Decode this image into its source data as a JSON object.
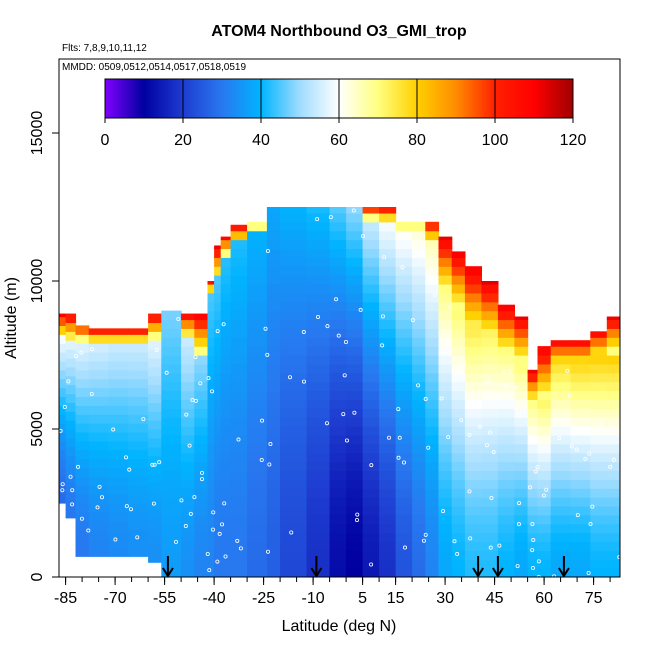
{
  "chart_data": {
    "type": "heatmap",
    "title": "ATOM4 Northbound O3_GMI_trop",
    "subtitle_flights": "Flts: 7,8,9,10,11,12",
    "subtitle_dates": "MMDD: 0509,0512,0514,0517,0518,0519",
    "xlabel": "Latitude (deg N)",
    "ylabel": "Altitude (m)",
    "xlim": [
      -87,
      83
    ],
    "ylim": [
      0,
      17500
    ],
    "x_tick_labels": [
      "-85",
      "-70",
      "-55",
      "-40",
      "-25",
      "-10",
      "5",
      "15",
      "30",
      "45",
      "60",
      "75"
    ],
    "x_tick_values": [
      -85,
      -70,
      -55,
      -40,
      -25,
      -10,
      5,
      15,
      30,
      45,
      60,
      75
    ],
    "y_tick_labels": [
      "0",
      "5000",
      "10000",
      "15000"
    ],
    "y_tick_values": [
      0,
      5000,
      10000,
      15000
    ],
    "colorbar": {
      "min": 0,
      "max": 120,
      "tick_labels": [
        "0",
        "20",
        "40",
        "60",
        "80",
        "100",
        "120"
      ],
      "tick_values": [
        0,
        20,
        40,
        60,
        80,
        100,
        120
      ],
      "colors": [
        "#8000ff",
        "#0000a0",
        "#1e3cd0",
        "#2878f0",
        "#00b4ff",
        "#a0dcff",
        "#ffffff",
        "#ffff80",
        "#ffd000",
        "#ff8c00",
        "#ff2000",
        "#ff0000",
        "#a00000"
      ]
    },
    "arrow_latitudes": [
      -54,
      -9,
      40,
      46,
      66
    ],
    "profile_columns": [
      {
        "lat_min": -87,
        "lat_max": -85,
        "surface": 2500,
        "tropopause": 8000,
        "strat_top": 8900,
        "o3_low": 28,
        "o3_high": 60
      },
      {
        "lat_min": -85,
        "lat_max": -82,
        "surface": 2000,
        "tropopause": 7900,
        "strat_top": 8900,
        "o3_low": 30,
        "o3_high": 58
      },
      {
        "lat_min": -82,
        "lat_max": -78,
        "surface": 700,
        "tropopause": 7900,
        "strat_top": 8500,
        "o3_low": 30,
        "o3_high": 58
      },
      {
        "lat_min": -78,
        "lat_max": -72,
        "surface": 700,
        "tropopause": 7800,
        "strat_top": 8400,
        "o3_low": 32,
        "o3_high": 56
      },
      {
        "lat_min": -72,
        "lat_max": -66,
        "surface": 700,
        "tropopause": 7800,
        "strat_top": 8400,
        "o3_low": 33,
        "o3_high": 55
      },
      {
        "lat_min": -66,
        "lat_max": -60,
        "surface": 700,
        "tropopause": 7800,
        "strat_top": 8400,
        "o3_low": 34,
        "o3_high": 55
      },
      {
        "lat_min": -60,
        "lat_max": -56,
        "surface": 500,
        "tropopause": 8000,
        "strat_top": 8900,
        "o3_low": 34,
        "o3_high": 58
      },
      {
        "lat_min": -56,
        "lat_max": -50,
        "surface": 0,
        "tropopause": 9000,
        "strat_top": 9000,
        "o3_low": 36,
        "o3_high": 48
      },
      {
        "lat_min": -50,
        "lat_max": -46,
        "surface": 0,
        "tropopause": 8000,
        "strat_top": 8900,
        "o3_low": 34,
        "o3_high": 55
      },
      {
        "lat_min": -46,
        "lat_max": -42,
        "surface": 0,
        "tropopause": 7500,
        "strat_top": 8900,
        "o3_low": 32,
        "o3_high": 50
      },
      {
        "lat_min": -42,
        "lat_max": -40,
        "surface": 0,
        "tropopause": 9500,
        "strat_top": 10000,
        "o3_low": 32,
        "o3_high": 45
      },
      {
        "lat_min": -40,
        "lat_max": -38,
        "surface": 0,
        "tropopause": 10000,
        "strat_top": 11200,
        "o3_low": 30,
        "o3_high": 45
      },
      {
        "lat_min": -38,
        "lat_max": -35,
        "surface": 0,
        "tropopause": 10800,
        "strat_top": 11500,
        "o3_low": 30,
        "o3_high": 43
      },
      {
        "lat_min": -35,
        "lat_max": -30,
        "surface": 0,
        "tropopause": 11200,
        "strat_top": 11900,
        "o3_low": 30,
        "o3_high": 42
      },
      {
        "lat_min": -30,
        "lat_max": -24,
        "surface": 0,
        "tropopause": 11700,
        "strat_top": 12000,
        "o3_low": 28,
        "o3_high": 40
      },
      {
        "lat_min": -24,
        "lat_max": -20,
        "surface": 0,
        "tropopause": 12500,
        "strat_top": 12500,
        "o3_low": 26,
        "o3_high": 38
      },
      {
        "lat_min": -20,
        "lat_max": -12,
        "surface": 0,
        "tropopause": 12500,
        "strat_top": 12500,
        "o3_low": 22,
        "o3_high": 40
      },
      {
        "lat_min": -12,
        "lat_max": -5,
        "surface": 0,
        "tropopause": 12500,
        "strat_top": 12500,
        "o3_low": 18,
        "o3_high": 42
      },
      {
        "lat_min": -5,
        "lat_max": 0,
        "surface": 0,
        "tropopause": 12500,
        "strat_top": 12500,
        "o3_low": 12,
        "o3_high": 46
      },
      {
        "lat_min": 0,
        "lat_max": 5,
        "surface": 0,
        "tropopause": 12500,
        "strat_top": 12500,
        "o3_low": 10,
        "o3_high": 50
      },
      {
        "lat_min": 5,
        "lat_max": 10,
        "surface": 0,
        "tropopause": 12000,
        "strat_top": 12500,
        "o3_low": 14,
        "o3_high": 55
      },
      {
        "lat_min": 10,
        "lat_max": 15,
        "surface": 0,
        "tropopause": 11900,
        "strat_top": 12500,
        "o3_low": 18,
        "o3_high": 60
      },
      {
        "lat_min": 15,
        "lat_max": 20,
        "surface": 0,
        "tropopause": 11700,
        "strat_top": 12000,
        "o3_low": 24,
        "o3_high": 62
      },
      {
        "lat_min": 20,
        "lat_max": 24,
        "surface": 0,
        "tropopause": 11700,
        "strat_top": 12000,
        "o3_low": 28,
        "o3_high": 64
      },
      {
        "lat_min": 24,
        "lat_max": 28,
        "surface": 0,
        "tropopause": 11200,
        "strat_top": 12000,
        "o3_low": 32,
        "o3_high": 66
      },
      {
        "lat_min": 28,
        "lat_max": 32,
        "surface": 0,
        "tropopause": 9600,
        "strat_top": 11500,
        "o3_low": 38,
        "o3_high": 70
      },
      {
        "lat_min": 32,
        "lat_max": 36,
        "surface": 0,
        "tropopause": 9000,
        "strat_top": 11000,
        "o3_low": 40,
        "o3_high": 72
      },
      {
        "lat_min": 36,
        "lat_max": 41,
        "surface": 0,
        "tropopause": 8200,
        "strat_top": 10500,
        "o3_low": 42,
        "o3_high": 74
      },
      {
        "lat_min": 41,
        "lat_max": 46,
        "surface": 0,
        "tropopause": 8000,
        "strat_top": 10000,
        "o3_low": 42,
        "o3_high": 72
      },
      {
        "lat_min": 46,
        "lat_max": 51,
        "surface": 0,
        "tropopause": 7500,
        "strat_top": 9200,
        "o3_low": 40,
        "o3_high": 70
      },
      {
        "lat_min": 51,
        "lat_max": 55,
        "surface": 0,
        "tropopause": 7200,
        "strat_top": 8800,
        "o3_low": 38,
        "o3_high": 72
      },
      {
        "lat_min": 55,
        "lat_max": 58,
        "surface": 0,
        "tropopause": 5800,
        "strat_top": 7000,
        "o3_low": 40,
        "o3_high": 70
      },
      {
        "lat_min": 58,
        "lat_max": 62,
        "surface": 0,
        "tropopause": 6000,
        "strat_top": 7800,
        "o3_low": 40,
        "o3_high": 74
      },
      {
        "lat_min": 62,
        "lat_max": 68,
        "surface": 0,
        "tropopause": 7000,
        "strat_top": 8000,
        "o3_low": 38,
        "o3_high": 76
      },
      {
        "lat_min": 68,
        "lat_max": 74,
        "surface": 0,
        "tropopause": 7000,
        "strat_top": 8000,
        "o3_low": 38,
        "o3_high": 78
      },
      {
        "lat_min": 74,
        "lat_max": 79,
        "surface": 0,
        "tropopause": 7300,
        "strat_top": 8300,
        "o3_low": 40,
        "o3_high": 80
      },
      {
        "lat_min": 79,
        "lat_max": 83,
        "surface": 0,
        "tropopause": 7500,
        "strat_top": 8800,
        "o3_low": 40,
        "o3_high": 82
      }
    ]
  }
}
